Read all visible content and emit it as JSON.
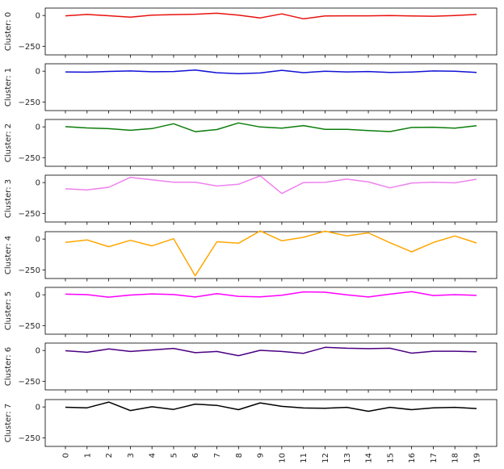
{
  "chart_data": {
    "type": "line",
    "layout": "stacked-subplots",
    "x": [
      0,
      1,
      2,
      3,
      4,
      5,
      6,
      7,
      8,
      9,
      10,
      11,
      12,
      13,
      14,
      15,
      16,
      17,
      18,
      19
    ],
    "x_tick_labels": [
      "0",
      "1",
      "2",
      "3",
      "4",
      "5",
      "6",
      "7",
      "8",
      "9",
      "10",
      "11",
      "12",
      "13",
      "14",
      "15",
      "16",
      "17",
      "18",
      "19"
    ],
    "ylim": [
      -320,
      60
    ],
    "y_ticks": [
      0,
      -250
    ],
    "y_tick_labels": [
      "0",
      "−250"
    ],
    "grid": false,
    "legend": "none",
    "panels": [
      {
        "ylabel": "Cluster: 0",
        "color": "#e8130f",
        "values": [
          -3,
          8,
          -2,
          -14,
          3,
          7,
          10,
          18,
          3,
          -20,
          13,
          -27,
          -4,
          -3,
          -3,
          -1,
          -4,
          -6,
          0,
          8
        ]
      },
      {
        "ylabel": "Cluster: 1",
        "color": "#1212d6",
        "values": [
          -6,
          -8,
          -2,
          2,
          -5,
          -3,
          9,
          -13,
          -20,
          -15,
          7,
          -12,
          -1,
          -6,
          -3,
          -11,
          -7,
          2,
          0,
          -10
        ]
      },
      {
        "ylabel": "Cluster: 2",
        "color": "#0c7d0c",
        "values": [
          2,
          -9,
          -15,
          -28,
          -14,
          25,
          -39,
          -22,
          32,
          -1,
          -10,
          10,
          -20,
          -20,
          -30,
          -38,
          -5,
          -3,
          -10,
          9
        ]
      },
      {
        "ylabel": "Cluster: 3",
        "color": "#ee82ee",
        "values": [
          -51,
          -60,
          -38,
          42,
          22,
          3,
          3,
          -28,
          -14,
          55,
          -89,
          0,
          2,
          28,
          5,
          -43,
          -4,
          3,
          -2,
          27
        ]
      },
      {
        "ylabel": "Cluster: 4",
        "color": "#ffa600",
        "values": [
          -27,
          -7,
          -62,
          -10,
          -55,
          3,
          -298,
          -22,
          -34,
          66,
          -14,
          14,
          64,
          26,
          50,
          -30,
          -104,
          -28,
          25,
          -32
        ]
      },
      {
        "ylabel": "Cluster: 5",
        "color": "#ff00ff",
        "values": [
          5,
          1,
          -19,
          -2,
          7,
          2,
          -18,
          9,
          -13,
          -17,
          -4,
          23,
          21,
          -1,
          -18,
          5,
          25,
          -6,
          1,
          -5
        ]
      },
      {
        "ylabel": "Cluster: 6",
        "color": "#4b0082",
        "values": [
          -2,
          -15,
          12,
          -8,
          4,
          17,
          -18,
          -8,
          -42,
          1,
          -8,
          -23,
          25,
          18,
          15,
          18,
          -22,
          -6,
          -6,
          -11
        ]
      },
      {
        "ylabel": "Cluster: 7",
        "color": "#000000",
        "values": [
          -2,
          -7,
          40,
          -29,
          2,
          -20,
          23,
          13,
          -22,
          33,
          5,
          -8,
          -10,
          -3,
          -35,
          -3,
          -22,
          -7,
          -3,
          -13
        ]
      }
    ]
  }
}
